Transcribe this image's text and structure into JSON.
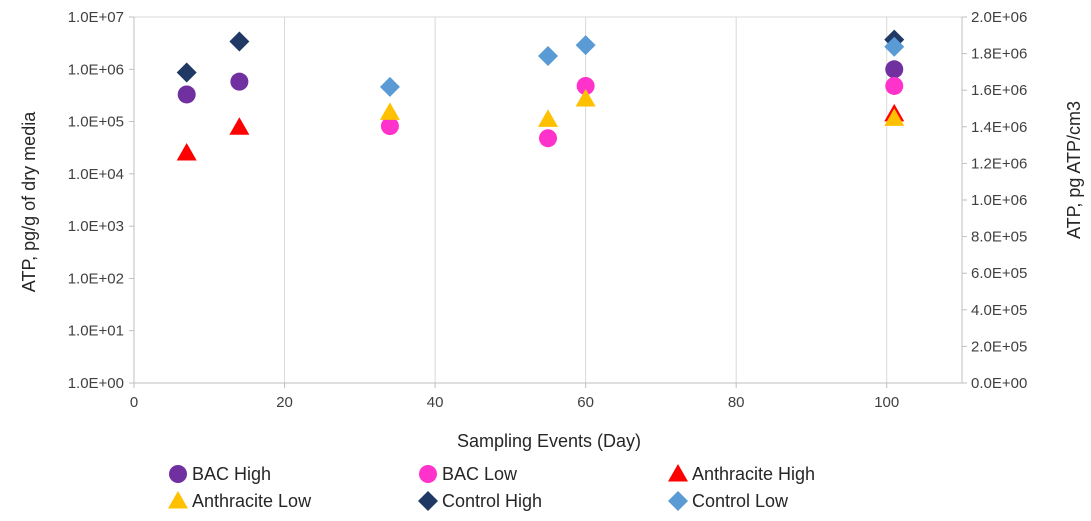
{
  "chart_data": {
    "type": "scatter",
    "title": "",
    "xlabel": "Sampling Events (Day)",
    "ylabel": "ATP, pg/g of dry media",
    "y2label": "ATP, pg ATP/cm3",
    "xlim": [
      0,
      110
    ],
    "x_ticks": [
      0,
      20,
      40,
      60,
      80,
      100
    ],
    "y_scale": "log",
    "ylim": [
      1,
      10000000
    ],
    "y_ticks": [
      "1.0E+00",
      "1.0E+01",
      "1.0E+02",
      "1.0E+03",
      "1.0E+04",
      "1.0E+05",
      "1.0E+06",
      "1.0E+07"
    ],
    "y2lim": [
      0,
      2000000
    ],
    "y2_ticks": [
      "0.0E+00",
      "2.0E+05",
      "4.0E+05",
      "6.0E+05",
      "8.0E+05",
      "1.0E+06",
      "1.2E+06",
      "1.4E+06",
      "1.6E+06",
      "1.8E+06",
      "2.0E+06"
    ],
    "grid": "vertical",
    "legend_position": "bottom",
    "series": [
      {
        "name": "BAC High",
        "marker": "circle",
        "color": "#7030A0",
        "axis": "left",
        "points": [
          [
            7,
            330000
          ],
          [
            14,
            580000
          ],
          [
            101,
            1000000
          ]
        ]
      },
      {
        "name": "BAC Low",
        "marker": "circle",
        "color": "#FF33CC",
        "axis": "left",
        "points": [
          [
            34,
            82000
          ],
          [
            55,
            48000
          ],
          [
            60,
            480000
          ],
          [
            101,
            480000
          ]
        ]
      },
      {
        "name": "Anthracite High",
        "marker": "triangle",
        "color": "#FF0000",
        "axis": "left",
        "points": [
          [
            7,
            25000
          ],
          [
            14,
            78000
          ],
          [
            101,
            140000
          ]
        ]
      },
      {
        "name": "Anthracite Low",
        "marker": "triangle",
        "color": "#FFC000",
        "axis": "left",
        "points": [
          [
            34,
            150000
          ],
          [
            55,
            110000
          ],
          [
            60,
            270000
          ],
          [
            101,
            115000
          ]
        ]
      },
      {
        "name": "Control High",
        "marker": "diamond",
        "color": "#1F3864",
        "axis": "left",
        "points": [
          [
            7,
            870000
          ],
          [
            14,
            3400000
          ],
          [
            101,
            3700000
          ]
        ]
      },
      {
        "name": "Control Low",
        "marker": "diamond",
        "color": "#5B9BD5",
        "axis": "left",
        "points": [
          [
            34,
            460000
          ],
          [
            55,
            1800000
          ],
          [
            60,
            2900000
          ],
          [
            101,
            2700000
          ]
        ]
      }
    ]
  }
}
